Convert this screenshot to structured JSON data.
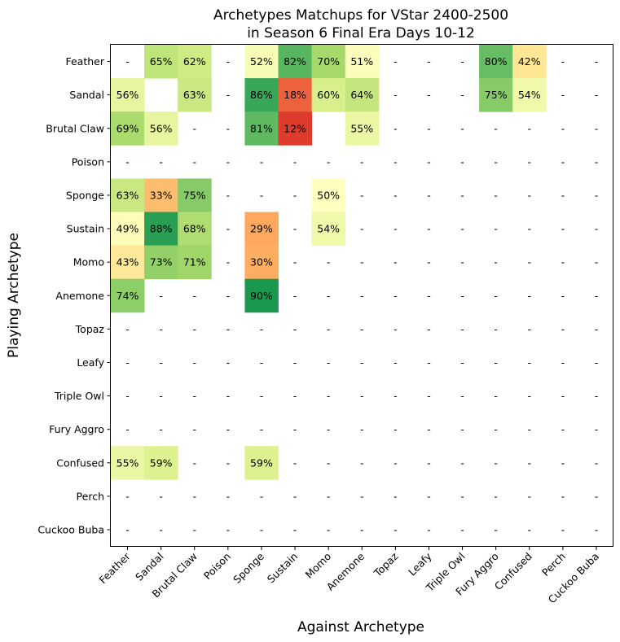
{
  "chart_data": {
    "type": "heatmap",
    "title": "Archetypes Matchups for VStar 2400-2500\nin Season 6 Final Era Days 10-12",
    "xlabel": "Against Archetype",
    "ylabel": "Playing Archetype",
    "rows": [
      "Feather",
      "Sandal",
      "Brutal Claw",
      "Poison",
      "Sponge",
      "Sustain",
      "Momo",
      "Anemone",
      "Topaz",
      "Leafy",
      "Triple Owl",
      "Fury Aggro",
      "Confused",
      "Perch",
      "Cuckoo Buba"
    ],
    "cols": [
      "Feather",
      "Sandal",
      "Brutal Claw",
      "Poison",
      "Sponge",
      "Sustain",
      "Momo",
      "Anemone",
      "Topaz",
      "Leafy",
      "Triple Owl",
      "Fury Aggro",
      "Confused",
      "Perch",
      "Cuckoo Buba"
    ],
    "missing_label": "-",
    "colormap": "RdYlGn",
    "value_range": [
      0,
      100
    ],
    "values": [
      [
        null,
        65,
        62,
        null,
        52,
        82,
        70,
        51,
        null,
        null,
        null,
        80,
        42,
        null,
        null
      ],
      [
        56,
        "",
        63,
        null,
        86,
        18,
        60,
        64,
        null,
        null,
        null,
        75,
        54,
        null,
        null
      ],
      [
        69,
        56,
        null,
        null,
        81,
        12,
        "",
        55,
        null,
        null,
        null,
        null,
        null,
        null,
        null
      ],
      [
        null,
        null,
        null,
        null,
        null,
        null,
        null,
        null,
        null,
        null,
        null,
        null,
        null,
        null,
        null
      ],
      [
        63,
        33,
        75,
        null,
        null,
        null,
        50,
        null,
        null,
        null,
        null,
        null,
        null,
        null,
        null
      ],
      [
        49,
        88,
        68,
        null,
        29,
        null,
        54,
        null,
        null,
        null,
        null,
        null,
        null,
        null,
        null
      ],
      [
        43,
        73,
        71,
        null,
        30,
        null,
        null,
        null,
        null,
        null,
        null,
        null,
        null,
        null,
        null
      ],
      [
        74,
        null,
        null,
        null,
        90,
        null,
        null,
        null,
        null,
        null,
        null,
        null,
        null,
        null,
        null
      ],
      [
        null,
        null,
        null,
        null,
        null,
        null,
        null,
        null,
        null,
        null,
        null,
        null,
        null,
        null,
        null
      ],
      [
        null,
        null,
        null,
        null,
        null,
        null,
        null,
        null,
        null,
        null,
        null,
        null,
        null,
        null,
        null
      ],
      [
        null,
        null,
        null,
        null,
        null,
        null,
        null,
        null,
        null,
        null,
        null,
        null,
        null,
        null,
        null
      ],
      [
        null,
        null,
        null,
        null,
        null,
        null,
        null,
        null,
        null,
        null,
        null,
        null,
        null,
        null,
        null
      ],
      [
        55,
        59,
        null,
        null,
        59,
        null,
        null,
        null,
        null,
        null,
        null,
        null,
        null,
        null,
        null
      ],
      [
        null,
        null,
        null,
        null,
        null,
        null,
        null,
        null,
        null,
        null,
        null,
        null,
        null,
        null,
        null
      ],
      [
        null,
        null,
        null,
        null,
        null,
        null,
        null,
        null,
        null,
        null,
        null,
        null,
        null,
        null,
        null
      ]
    ]
  }
}
